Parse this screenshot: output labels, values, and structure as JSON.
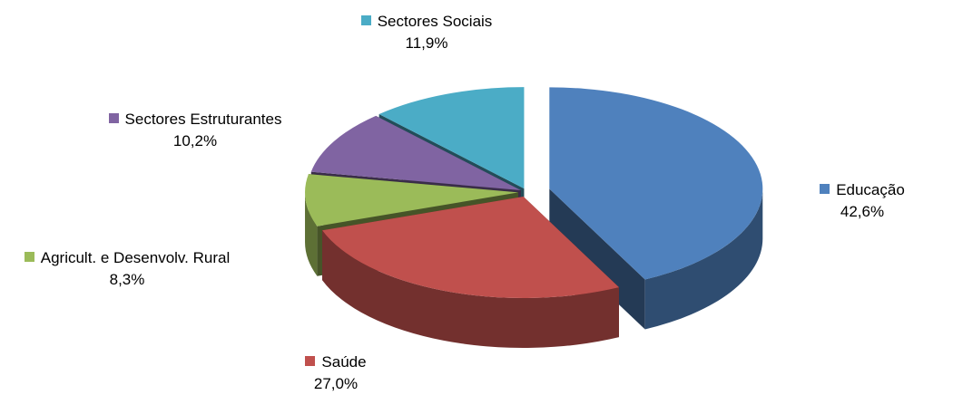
{
  "chart_data": {
    "type": "pie3d",
    "categories": [
      "Educação",
      "Saúde",
      "Agricult. e Desenvolv. Rural",
      "Sectores Estruturantes",
      "Sectores Sociais"
    ],
    "values": [
      42.6,
      27.0,
      8.3,
      10.2,
      11.9
    ],
    "value_labels": [
      "42,6%",
      "27,0%",
      "8,3%",
      "10,2%",
      "11,9%"
    ],
    "colors": [
      "#4f81bd",
      "#c0504d",
      "#9bbb59",
      "#8064a2",
      "#4bacc6"
    ]
  }
}
